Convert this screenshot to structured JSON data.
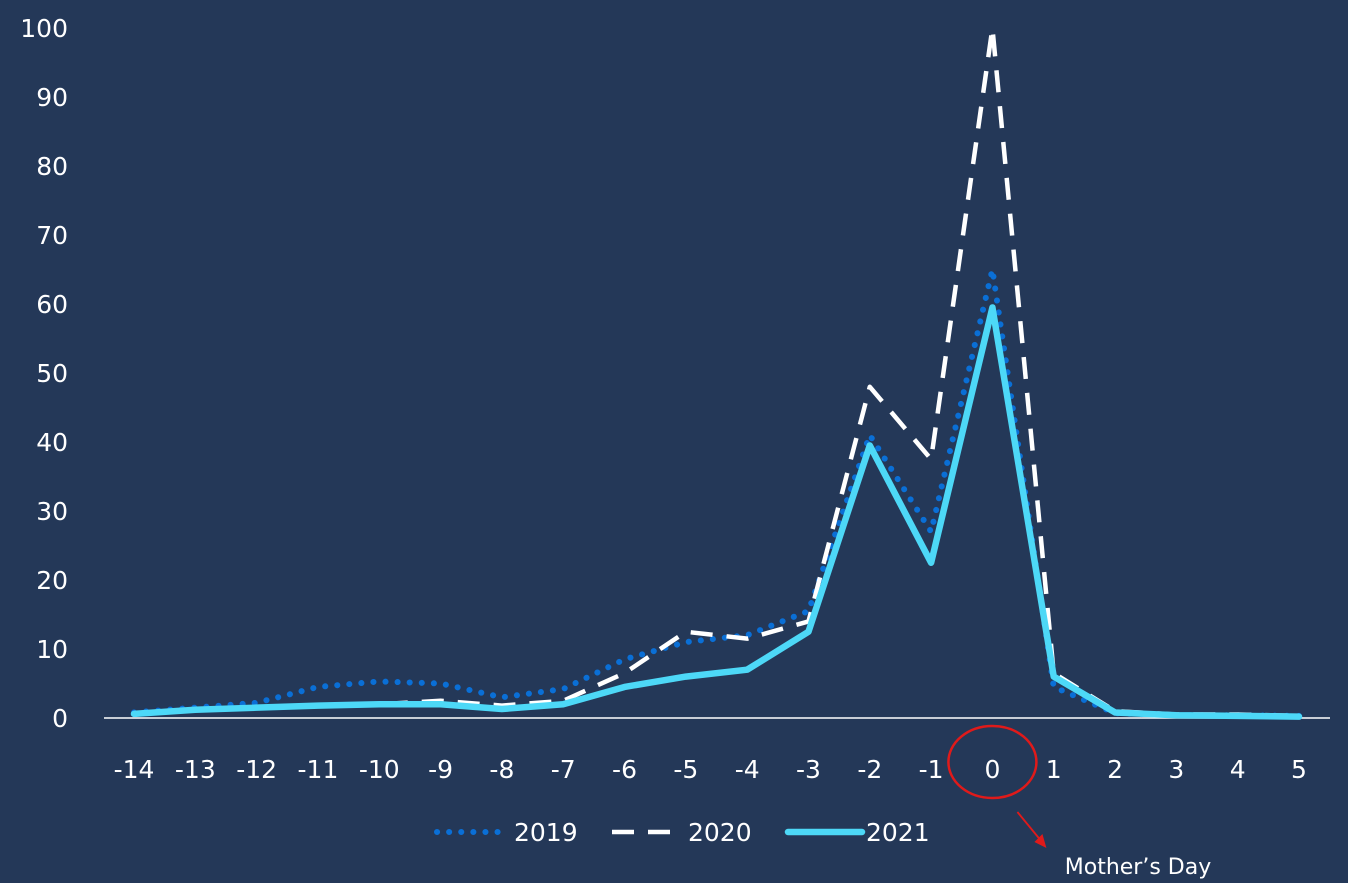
{
  "chart_data": {
    "type": "line",
    "title": "",
    "xlabel": "",
    "ylabel": "",
    "x": [
      -14,
      -13,
      -12,
      -11,
      -10,
      -9,
      -8,
      -7,
      -6,
      -5,
      -4,
      -3,
      -2,
      -1,
      0,
      1,
      2,
      3,
      4,
      5
    ],
    "xlim": [
      -14,
      5
    ],
    "ylim": [
      0,
      100
    ],
    "y_ticks": [
      0,
      10,
      20,
      30,
      40,
      50,
      60,
      70,
      80,
      90,
      100
    ],
    "grid": false,
    "legend_position": "bottom",
    "series": [
      {
        "name": "2019",
        "style": "dotted",
        "color": "#0a6fd6",
        "values": [
          0.8,
          1.5,
          2.2,
          4.5,
          5.3,
          5.0,
          3.0,
          4.2,
          8.5,
          11.0,
          12.0,
          15.5,
          41.0,
          27.0,
          65.0,
          4.5,
          0.7,
          0.4,
          0.4,
          0.3
        ]
      },
      {
        "name": "2020",
        "style": "dashed",
        "color": "#ffffff",
        "values": [
          0.7,
          1.2,
          1.5,
          1.8,
          2.0,
          2.5,
          1.8,
          2.5,
          6.5,
          12.5,
          11.5,
          14.0,
          48.0,
          37.5,
          100.0,
          6.5,
          1.0,
          0.5,
          0.5,
          0.3
        ]
      },
      {
        "name": "2021",
        "style": "solid",
        "color": "#4dd8f7",
        "values": [
          0.6,
          1.2,
          1.5,
          1.8,
          2.0,
          2.0,
          1.3,
          2.0,
          4.5,
          6.0,
          7.0,
          12.5,
          39.5,
          22.5,
          59.5,
          6.0,
          0.8,
          0.4,
          0.3,
          0.2
        ]
      }
    ],
    "annotation": {
      "text": "Mother’s Day",
      "x": 0,
      "circle_color": "#e01a1a",
      "arrow_color": "#e01a1a"
    }
  }
}
